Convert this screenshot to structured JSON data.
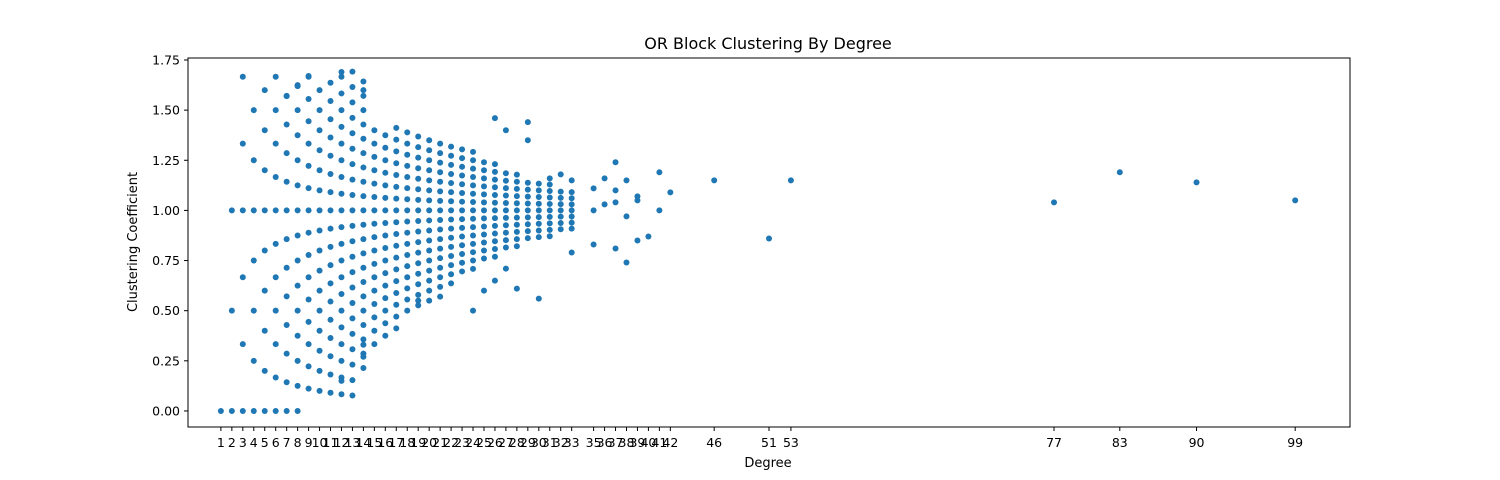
{
  "chart_data": {
    "type": "scatter",
    "title": "OR Block Clustering By Degree",
    "xlabel": "Degree",
    "ylabel": "Clustering Coefficient",
    "xlim": [
      -2,
      104
    ],
    "ylim": [
      -0.08,
      1.76
    ],
    "xticks": [
      1,
      2,
      3,
      4,
      5,
      6,
      7,
      8,
      9,
      10,
      11,
      12,
      13,
      14,
      15,
      16,
      17,
      18,
      19,
      20,
      21,
      22,
      23,
      24,
      25,
      26,
      27,
      28,
      29,
      30,
      31,
      32,
      33,
      35,
      36,
      37,
      38,
      39,
      40,
      41,
      42,
      46,
      51,
      53,
      77,
      83,
      90,
      99
    ],
    "yticks": [
      "0.00",
      "0.25",
      "0.50",
      "0.75",
      "1.00",
      "1.25",
      "1.50",
      "1.75"
    ],
    "marker_color": "#1f77b4",
    "outliers": [
      [
        2,
        0.5
      ],
      [
        3,
        0.333
      ],
      [
        3,
        0.667
      ],
      [
        4,
        0.25
      ],
      [
        4,
        0.75
      ],
      [
        4,
        1.25
      ],
      [
        5,
        0.2
      ],
      [
        5,
        1.4
      ],
      [
        12,
        0.15
      ],
      [
        12,
        1.69
      ],
      [
        14,
        0.27
      ],
      [
        14,
        0.33
      ],
      [
        14,
        1.6
      ],
      [
        9,
        1.67
      ],
      [
        8,
        1.62
      ],
      [
        7,
        1.57
      ],
      [
        19,
        0.55
      ],
      [
        21,
        0.57
      ],
      [
        24,
        0.5
      ],
      [
        25,
        0.6
      ],
      [
        26,
        0.65
      ],
      [
        27,
        0.71
      ],
      [
        28,
        0.61
      ],
      [
        30,
        0.56
      ],
      [
        31,
        1.16
      ],
      [
        32,
        1.18
      ],
      [
        33,
        0.79
      ],
      [
        33,
        1.15
      ],
      [
        29,
        1.44
      ],
      [
        29,
        1.35
      ],
      [
        26,
        1.46
      ],
      [
        27,
        1.4
      ],
      [
        35,
        0.83
      ],
      [
        35,
        1.0
      ],
      [
        35,
        1.11
      ],
      [
        36,
        1.03
      ],
      [
        36,
        1.16
      ],
      [
        37,
        0.81
      ],
      [
        37,
        1.04
      ],
      [
        37,
        1.1
      ],
      [
        37,
        1.24
      ],
      [
        38,
        0.74
      ],
      [
        38,
        0.97
      ],
      [
        38,
        1.15
      ],
      [
        39,
        0.85
      ],
      [
        39,
        1.05
      ],
      [
        39,
        1.07
      ],
      [
        40,
        0.87
      ],
      [
        41,
        1.0
      ],
      [
        41,
        1.19
      ],
      [
        42,
        1.09
      ],
      [
        46,
        1.15
      ],
      [
        51,
        0.86
      ],
      [
        53,
        1.15
      ],
      [
        77,
        1.04
      ],
      [
        83,
        1.19
      ],
      [
        90,
        1.14
      ],
      [
        99,
        1.05
      ]
    ]
  }
}
